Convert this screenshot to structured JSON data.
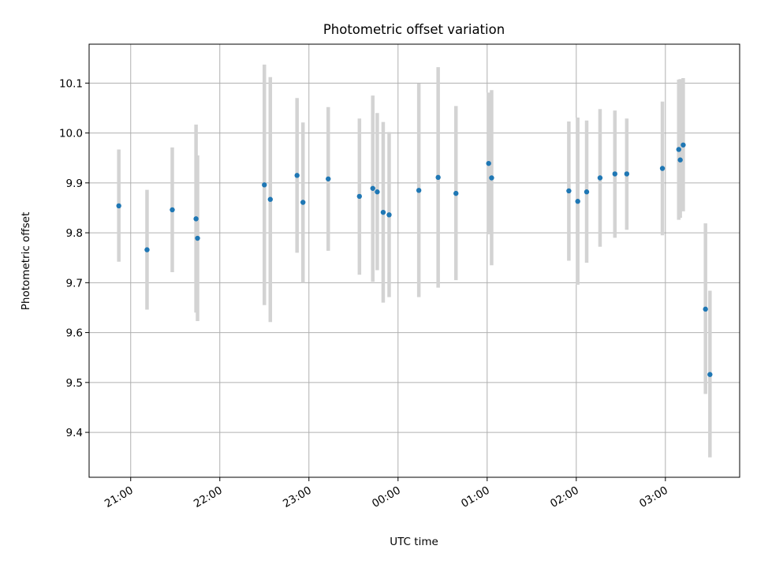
{
  "chart_data": {
    "type": "scatter",
    "title": "Photometric offset variation",
    "xlabel": "UTC time",
    "ylabel": "Photometric offset",
    "x_unit": "UTC hours after 21:00 (times past midnight exceed 3.0)",
    "xlim": [
      "20:32",
      "03:50"
    ],
    "ylim": [
      9.31,
      10.178
    ],
    "x_ticks": [
      "21:00",
      "22:00",
      "23:00",
      "00:00",
      "01:00",
      "02:00",
      "03:00"
    ],
    "y_ticks": [
      "9.4",
      "9.5",
      "9.6",
      "9.7",
      "9.8",
      "9.9",
      "10.0",
      "10.1"
    ],
    "grid": true,
    "colors": {
      "points": "#1f77b4",
      "errorbars": "#d3d3d3",
      "grid": "#b0b0b0"
    },
    "points": [
      {
        "t": "20:52",
        "y": 9.854,
        "lo": 9.742,
        "hi": 9.967
      },
      {
        "t": "21:11",
        "y": 9.766,
        "lo": 9.646,
        "hi": 9.886
      },
      {
        "t": "21:28",
        "y": 9.846,
        "lo": 9.721,
        "hi": 9.971
      },
      {
        "t": "21:44",
        "y": 9.828,
        "lo": 9.64,
        "hi": 10.017
      },
      {
        "t": "21:45",
        "y": 9.789,
        "lo": 9.623,
        "hi": 9.955
      },
      {
        "t": "22:30",
        "y": 9.896,
        "lo": 9.655,
        "hi": 10.137
      },
      {
        "t": "22:34",
        "y": 9.867,
        "lo": 9.621,
        "hi": 10.112
      },
      {
        "t": "22:52",
        "y": 9.915,
        "lo": 9.76,
        "hi": 10.07
      },
      {
        "t": "22:56",
        "y": 9.861,
        "lo": 9.7,
        "hi": 10.021
      },
      {
        "t": "23:13",
        "y": 9.908,
        "lo": 9.764,
        "hi": 10.052
      },
      {
        "t": "23:34",
        "y": 9.873,
        "lo": 9.716,
        "hi": 10.029
      },
      {
        "t": "23:43",
        "y": 9.889,
        "lo": 9.702,
        "hi": 10.075
      },
      {
        "t": "23:46",
        "y": 9.882,
        "lo": 9.725,
        "hi": 10.04
      },
      {
        "t": "23:50",
        "y": 9.841,
        "lo": 9.66,
        "hi": 10.022
      },
      {
        "t": "23:54",
        "y": 9.836,
        "lo": 9.671,
        "hi": 10.002
      },
      {
        "t": "00:14",
        "y": 9.885,
        "lo": 9.671,
        "hi": 10.099
      },
      {
        "t": "00:27",
        "y": 9.911,
        "lo": 9.69,
        "hi": 10.132
      },
      {
        "t": "00:39",
        "y": 9.879,
        "lo": 9.705,
        "hi": 10.054
      },
      {
        "t": "01:01",
        "y": 9.939,
        "lo": 9.797,
        "hi": 10.081
      },
      {
        "t": "01:03",
        "y": 9.91,
        "lo": 9.735,
        "hi": 10.086
      },
      {
        "t": "01:55",
        "y": 9.884,
        "lo": 9.744,
        "hi": 10.023
      },
      {
        "t": "02:01",
        "y": 9.863,
        "lo": 9.696,
        "hi": 10.031
      },
      {
        "t": "02:07",
        "y": 9.882,
        "lo": 9.74,
        "hi": 10.025
      },
      {
        "t": "02:16",
        "y": 9.91,
        "lo": 9.772,
        "hi": 10.048
      },
      {
        "t": "02:26",
        "y": 9.918,
        "lo": 9.79,
        "hi": 10.045
      },
      {
        "t": "02:34",
        "y": 9.918,
        "lo": 9.806,
        "hi": 10.029
      },
      {
        "t": "02:58",
        "y": 9.929,
        "lo": 9.795,
        "hi": 10.063
      },
      {
        "t": "03:09",
        "y": 9.967,
        "lo": 9.826,
        "hi": 10.107
      },
      {
        "t": "03:10",
        "y": 9.946,
        "lo": 9.83,
        "hi": 10.108
      },
      {
        "t": "03:12",
        "y": 9.976,
        "lo": 9.843,
        "hi": 10.11
      },
      {
        "t": "03:27",
        "y": 9.647,
        "lo": 9.477,
        "hi": 9.819
      },
      {
        "t": "03:30",
        "y": 9.516,
        "lo": 9.35,
        "hi": 9.684
      }
    ]
  }
}
